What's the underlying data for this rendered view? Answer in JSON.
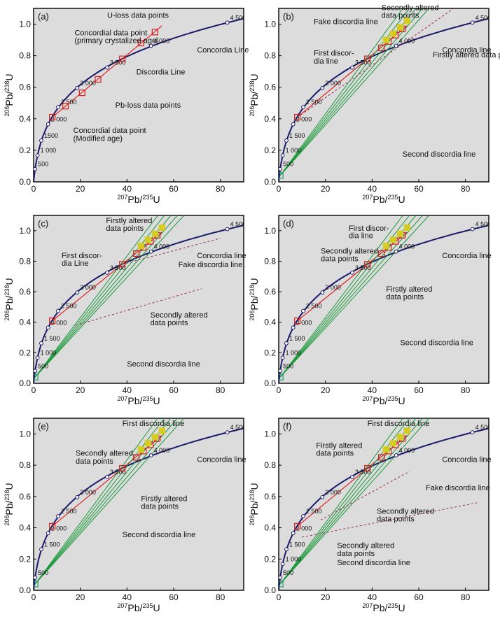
{
  "colors": {
    "background": "#dcdcdc",
    "concordia": "#1a1a6b",
    "first_discordia": "#e02020",
    "second_discordia": "#1a9a3a",
    "fake_discordia": "#a03a5a",
    "primary_point": "#d62020",
    "altered_point": "#d4cc20",
    "second_point": "#1a9a6a"
  },
  "chart_data": [
    {
      "id": "a",
      "type": "scatter",
      "panel_label": "(a)",
      "xlabel": "207Pb/235U",
      "ylabel": "206Pb/238U",
      "xlim": [
        0,
        90
      ],
      "ylim": [
        0,
        1.1
      ],
      "xticks": [
        "0",
        "20",
        "40",
        "60",
        "80"
      ],
      "yticks": [
        "0.0",
        "0.2",
        "0.4",
        "0.6",
        "0.8",
        "1.0"
      ],
      "concordia_ages": [
        {
          "label": "500",
          "x": 0.64,
          "y": 0.081
        },
        {
          "label": "1 000",
          "x": 1.68,
          "y": 0.168
        },
        {
          "label": "1500",
          "x": 3.29,
          "y": 0.262
        },
        {
          "label": "2 000",
          "x": 6.21,
          "y": 0.365
        },
        {
          "label": "2 500",
          "x": 10.5,
          "y": 0.474
        },
        {
          "label": "3 000",
          "x": 18.7,
          "y": 0.595
        },
        {
          "label": "3 500",
          "x": 31.5,
          "y": 0.725
        },
        {
          "label": "4 000",
          "x": 50.3,
          "y": 0.863
        },
        {
          "label": "4 500 Ma",
          "x": 83.0,
          "y": 1.01
        }
      ],
      "concordia_line_label": "Concordia Line",
      "series": [
        {
          "role": "first_discordia",
          "points": [
            [
              8,
              0.41
            ],
            [
              55,
              0.99
            ]
          ]
        }
      ],
      "points": [
        {
          "kind": "primary",
          "x": 8.0,
          "y": 0.41
        },
        {
          "kind": "primary",
          "x": 13.7,
          "y": 0.48
        },
        {
          "kind": "primary",
          "x": 20.8,
          "y": 0.565
        },
        {
          "kind": "primary",
          "x": 27.6,
          "y": 0.65
        },
        {
          "kind": "primary",
          "x": 38.0,
          "y": 0.78
        },
        {
          "kind": "primary",
          "x": 46.0,
          "y": 0.88
        },
        {
          "kind": "primary",
          "x": 52.0,
          "y": 0.95
        }
      ],
      "annotations": [
        {
          "text": "U-loss data points",
          "tx": 31.5,
          "ty": 1.04
        },
        {
          "text": "Concordial data point",
          "tx": 17.5,
          "ty": 0.93
        },
        {
          "text": "(primary crystalized age)",
          "tx": 17.5,
          "ty": 0.88
        },
        {
          "text": "Discordia Line",
          "tx": 44,
          "ty": 0.68
        },
        {
          "text": "Pb-loss data points",
          "tx": 35,
          "ty": 0.47
        },
        {
          "text": "Concordial data point",
          "tx": 17,
          "ty": 0.31
        },
        {
          "text": "(Modified age)",
          "tx": 17,
          "ty": 0.26
        }
      ]
    },
    {
      "id": "b",
      "type": "scatter",
      "panel_label": "(b)",
      "xlabel": "207Pb/235U",
      "ylabel": "206Pb/238U",
      "xlim": [
        0,
        90
      ],
      "ylim": [
        0,
        1.1
      ],
      "xticks": [
        "0",
        "20",
        "40",
        "60",
        "80"
      ],
      "yticks": [
        "0.0",
        "0.2",
        "0.4",
        "0.6",
        "0.8",
        "1.0"
      ],
      "concordia_ages": [
        {
          "label": "500",
          "x": 0.64,
          "y": 0.081
        },
        {
          "label": "1 000",
          "x": 1.68,
          "y": 0.168
        },
        {
          "label": "1 500",
          "x": 3.29,
          "y": 0.262
        },
        {
          "label": "2 000",
          "x": 6.21,
          "y": 0.365
        },
        {
          "label": "2 500",
          "x": 10.5,
          "y": 0.474
        },
        {
          "label": "3 000",
          "x": 18.7,
          "y": 0.595
        },
        {
          "label": "3 500",
          "x": 31.5,
          "y": 0.725
        },
        {
          "label": "4 000",
          "x": 50.3,
          "y": 0.863
        },
        {
          "label": "4 500 Ma",
          "x": 83.0,
          "y": 1.01
        }
      ],
      "concordia_line_label": "Concordia line",
      "annotations": [
        {
          "text": "Secondly altered",
          "tx": 44,
          "ty": 1.09
        },
        {
          "text": "data points",
          "tx": 44,
          "ty": 1.04
        },
        {
          "text": "Fake discordia line",
          "tx": 15,
          "ty": 1.0
        },
        {
          "text": "First discor-",
          "tx": 15,
          "ty": 0.8
        },
        {
          "text": "dia line",
          "tx": 15,
          "ty": 0.75
        },
        {
          "text": "Firstly altered data points",
          "tx": 66,
          "ty": 0.79
        },
        {
          "text": "Second discordia line",
          "tx": 53,
          "ty": 0.16
        }
      ]
    },
    {
      "id": "c",
      "type": "scatter",
      "panel_label": "(c)",
      "xlabel": "207Pb/235U",
      "ylabel": "206Pb/238U",
      "xlim": [
        0,
        90
      ],
      "ylim": [
        0,
        1.1
      ],
      "xticks": [
        "0",
        "20",
        "40",
        "60",
        "80"
      ],
      "yticks": [
        "0.0",
        "0.2",
        "0.4",
        "0.6",
        "0.8",
        "1.0"
      ],
      "concordia_ages": [
        {
          "label": "500",
          "x": 0.64,
          "y": 0.081
        },
        {
          "label": "1 000",
          "x": 1.68,
          "y": 0.168
        },
        {
          "label": "1 500",
          "x": 3.29,
          "y": 0.262
        },
        {
          "label": "2 000",
          "x": 6.21,
          "y": 0.365
        },
        {
          "label": "2 500",
          "x": 10.5,
          "y": 0.474
        },
        {
          "label": "3 000",
          "x": 18.7,
          "y": 0.595
        },
        {
          "label": "3 500",
          "x": 31.5,
          "y": 0.725
        },
        {
          "label": "4 000",
          "x": 50.3,
          "y": 0.863
        },
        {
          "label": "4 500 Ma",
          "x": 83.0,
          "y": 1.01
        }
      ],
      "concordia_line_label": "Concordia line",
      "annotations": [
        {
          "text": "Firstly altered",
          "tx": 31,
          "ty": 1.05
        },
        {
          "text": "data points",
          "tx": 31,
          "ty": 1.0
        },
        {
          "text": "First discor-",
          "tx": 12,
          "ty": 0.82
        },
        {
          "text": "dia Line",
          "tx": 12,
          "ty": 0.77
        },
        {
          "text": "Fake discordia line",
          "tx": 62,
          "ty": 0.76
        },
        {
          "text": "Secondly altered",
          "tx": 50,
          "ty": 0.43
        },
        {
          "text": "data points",
          "tx": 50,
          "ty": 0.38
        },
        {
          "text": "Second discordia line",
          "tx": 40,
          "ty": 0.11
        }
      ]
    },
    {
      "id": "d",
      "type": "scatter",
      "panel_label": "(d)",
      "xlabel": "207Pb/235U",
      "ylabel": "206Pb/238U",
      "xlim": [
        0,
        90
      ],
      "ylim": [
        0,
        1.1
      ],
      "xticks": [
        "0",
        "20",
        "40",
        "60",
        "80"
      ],
      "yticks": [
        "0.0",
        "0.2",
        "0.4",
        "0.6",
        "0.8",
        "1.0"
      ],
      "concordia_ages": [
        {
          "label": "500",
          "x": 0.64,
          "y": 0.081
        },
        {
          "label": "1 000",
          "x": 1.68,
          "y": 0.168
        },
        {
          "label": "1 500",
          "x": 3.29,
          "y": 0.262
        },
        {
          "label": "2 000",
          "x": 6.21,
          "y": 0.365
        },
        {
          "label": "2 500",
          "x": 10.5,
          "y": 0.474
        },
        {
          "label": "3 000",
          "x": 18.7,
          "y": 0.595
        },
        {
          "label": "3 500",
          "x": 31.5,
          "y": 0.725
        },
        {
          "label": "4 000",
          "x": 50.3,
          "y": 0.863
        },
        {
          "label": "4 500 Ma",
          "x": 83.0,
          "y": 1.01
        }
      ],
      "concordia_line_label": "Concordia line",
      "annotations": [
        {
          "text": "First discor-",
          "tx": 30,
          "ty": 1.0
        },
        {
          "text": "dia line",
          "tx": 30,
          "ty": 0.95
        },
        {
          "text": "Secondly altered",
          "tx": 18,
          "ty": 0.85
        },
        {
          "text": "data points",
          "tx": 18,
          "ty": 0.8
        },
        {
          "text": "Firstly altered",
          "tx": 46,
          "ty": 0.6
        },
        {
          "text": "data points",
          "tx": 46,
          "ty": 0.55
        },
        {
          "text": "Second discordia line",
          "tx": 52,
          "ty": 0.25
        }
      ]
    },
    {
      "id": "e",
      "type": "scatter",
      "panel_label": "(e)",
      "xlabel": "207Pb/235U",
      "ylabel": "206Pb/238U",
      "xlim": [
        0,
        90
      ],
      "ylim": [
        0,
        1.1
      ],
      "xticks": [
        "0",
        "20",
        "40",
        "60",
        "80"
      ],
      "yticks": [
        "0.0",
        "0.2",
        "0.4",
        "0.6",
        "0.8",
        "1.0"
      ],
      "concordia_ages": [
        {
          "label": "500",
          "x": 0.64,
          "y": 0.081
        },
        {
          "label": "1 500",
          "x": 3.29,
          "y": 0.262
        },
        {
          "label": "2 000",
          "x": 6.21,
          "y": 0.365
        },
        {
          "label": "2 500",
          "x": 10.5,
          "y": 0.474
        },
        {
          "label": "3 000",
          "x": 18.7,
          "y": 0.595
        },
        {
          "label": "3 500",
          "x": 31.5,
          "y": 0.725
        },
        {
          "label": "4 000",
          "x": 50.3,
          "y": 0.863
        },
        {
          "label": "4 500 Ma",
          "x": 83.0,
          "y": 1.01
        }
      ],
      "concordia_line_label": "Concordia line",
      "annotations": [
        {
          "text": "First discordia line",
          "tx": 38,
          "ty": 1.05
        },
        {
          "text": "Secondly altered",
          "tx": 18,
          "ty": 0.86
        },
        {
          "text": "data points",
          "tx": 18,
          "ty": 0.81
        },
        {
          "text": "Firstly altered",
          "tx": 46,
          "ty": 0.57
        },
        {
          "text": "data points",
          "tx": 46,
          "ty": 0.52
        },
        {
          "text": "Second discordia line",
          "tx": 38,
          "ty": 0.34
        }
      ]
    },
    {
      "id": "f",
      "type": "scatter",
      "panel_label": "(f)",
      "xlabel": "207Pb/235U",
      "ylabel": "206Pb/238U",
      "xlim": [
        0,
        90
      ],
      "ylim": [
        0,
        1.1
      ],
      "xticks": [
        "0",
        "20",
        "40",
        "60",
        "80"
      ],
      "yticks": [
        "0.0",
        "0.2",
        "0.4",
        "0.6",
        "0.8",
        "1.0"
      ],
      "concordia_ages": [
        {
          "label": "500",
          "x": 0.64,
          "y": 0.081
        },
        {
          "label": "1 000",
          "x": 1.68,
          "y": 0.168
        },
        {
          "label": "1 500",
          "x": 3.29,
          "y": 0.262
        },
        {
          "label": "2 000",
          "x": 6.21,
          "y": 0.365
        },
        {
          "label": "2 500",
          "x": 10.5,
          "y": 0.474
        },
        {
          "label": "3 000",
          "x": 18.7,
          "y": 0.595
        },
        {
          "label": "3 500",
          "x": 31.5,
          "y": 0.725
        },
        {
          "label": "4 000",
          "x": 50.3,
          "y": 0.863
        },
        {
          "label": "4 500 Ma",
          "x": 83.0,
          "y": 1.01
        }
      ],
      "concordia_line_label": "Concordia line",
      "annotations": [
        {
          "text": "First discordia line",
          "tx": 38,
          "ty": 1.05
        },
        {
          "text": "Firstly altered",
          "tx": 16,
          "ty": 0.91
        },
        {
          "text": "data points",
          "tx": 16,
          "ty": 0.86
        },
        {
          "text": "Fake discordia line",
          "tx": 63,
          "ty": 0.64
        },
        {
          "text": "Secondly altered",
          "tx": 42,
          "ty": 0.49
        },
        {
          "text": "data points",
          "tx": 42,
          "ty": 0.44
        },
        {
          "text": "Secondly altered",
          "tx": 25,
          "ty": 0.27
        },
        {
          "text": "data points",
          "tx": 25,
          "ty": 0.22
        },
        {
          "text": "Second discordia line",
          "tx": 25,
          "ty": 0.16
        }
      ]
    }
  ]
}
